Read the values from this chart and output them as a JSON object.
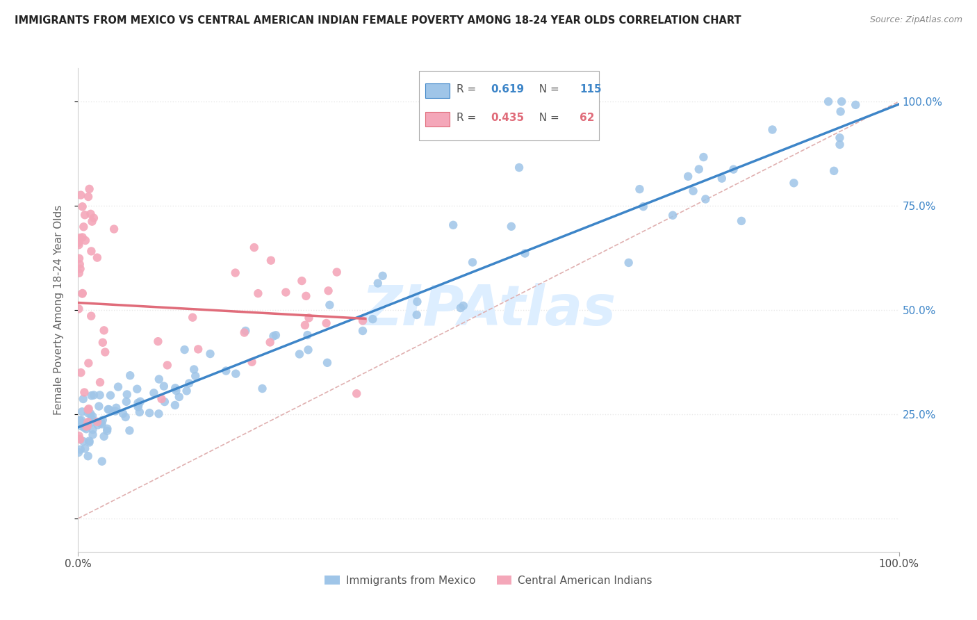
{
  "title": "IMMIGRANTS FROM MEXICO VS CENTRAL AMERICAN INDIAN FEMALE POVERTY AMONG 18-24 YEAR OLDS CORRELATION CHART",
  "source": "Source: ZipAtlas.com",
  "ylabel": "Female Poverty Among 18-24 Year Olds",
  "legend1_label": "Immigrants from Mexico",
  "legend2_label": "Central American Indians",
  "R1": 0.619,
  "N1": 115,
  "R2": 0.435,
  "N2": 62,
  "color1": "#9fc5e8",
  "color2": "#f4a7b9",
  "trendline1_color": "#3d85c8",
  "trendline2_color": "#e06c7a",
  "diagonal_color": "#e0b0b0",
  "background_color": "#ffffff",
  "watermark": "ZIPAtlas",
  "watermark_color": "#ddeeff",
  "right_tick_color": "#3d85c8",
  "grid_color": "#e8e8e8"
}
